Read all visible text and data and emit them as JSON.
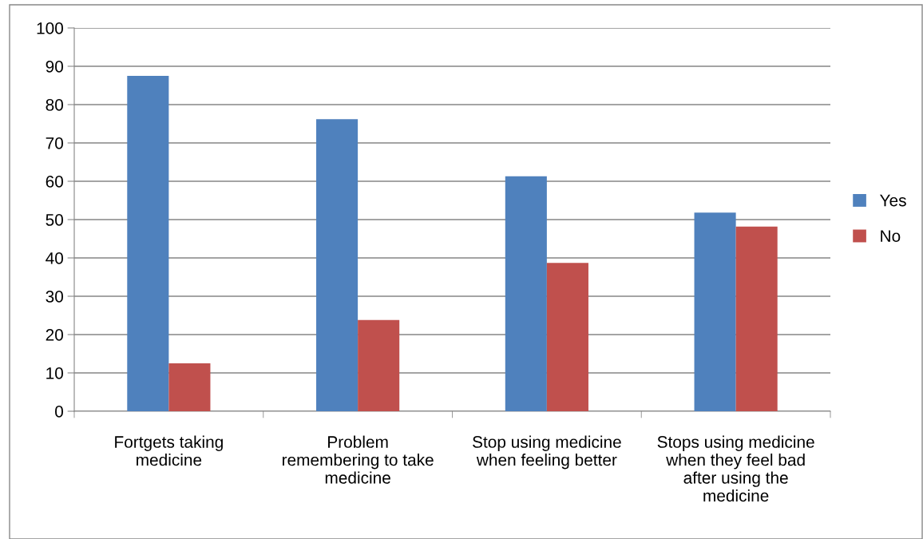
{
  "chart_data": {
    "type": "bar",
    "categories": [
      "Fortgets taking\nmedicine",
      "Problem\nremembering to take\nmedicine",
      "Stop using medicine\nwhen feeling better",
      "Stops using medicine\nwhen they feel bad\nafter using the\nmedicine"
    ],
    "series": [
      {
        "name": "Yes",
        "color": "#4f81bd",
        "values": [
          87.5,
          76.2,
          61.3,
          51.8
        ]
      },
      {
        "name": "No",
        "color": "#c0504d",
        "values": [
          12.5,
          23.8,
          38.7,
          48.2
        ]
      }
    ],
    "ylim": [
      0,
      100
    ],
    "yticks": [
      0,
      10,
      20,
      30,
      40,
      50,
      60,
      70,
      80,
      90,
      100
    ],
    "grid": "y",
    "legend": "right"
  }
}
